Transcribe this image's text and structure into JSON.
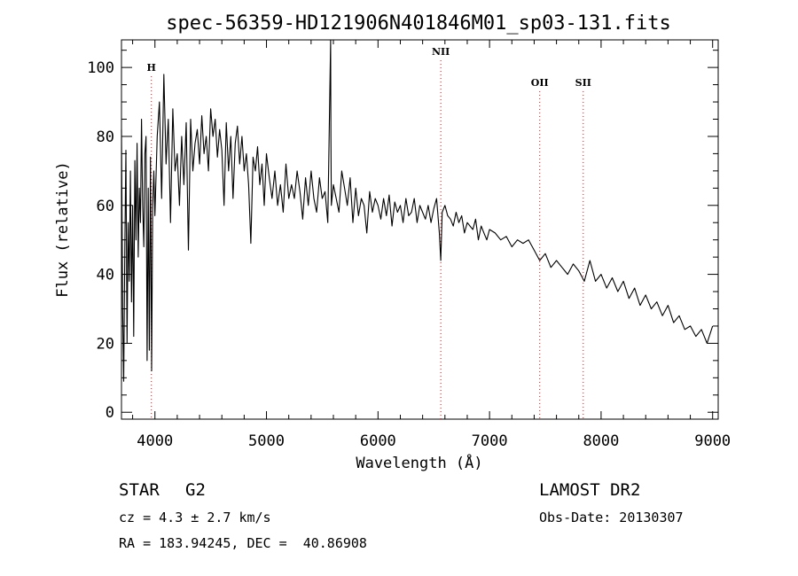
{
  "chart_data": {
    "type": "line",
    "title": "spec-56359-HD121906N401846M01_sp03-131.fits",
    "xlabel": "Wavelength (Å)",
    "ylabel": "Flux (relative)",
    "xlim": [
      3700,
      9050
    ],
    "ylim": [
      -2,
      108
    ],
    "xticks": [
      4000,
      5000,
      6000,
      7000,
      8000,
      9000
    ],
    "yticks": [
      0,
      20,
      40,
      60,
      80,
      100
    ],
    "grid": false,
    "series": [
      {
        "x": [
          3700,
          3710,
          3720,
          3730,
          3740,
          3750,
          3760,
          3770,
          3780,
          3790,
          3800,
          3810,
          3820,
          3830,
          3840,
          3850,
          3860,
          3870,
          3880,
          3890,
          3900,
          3910,
          3920,
          3930,
          3940,
          3950,
          3960,
          3970,
          3980,
          3990,
          4000,
          4020,
          4040,
          4060,
          4080,
          4100,
          4120,
          4140,
          4160,
          4180,
          4200,
          4220,
          4240,
          4260,
          4280,
          4300,
          4320,
          4340,
          4360,
          4380,
          4400,
          4420,
          4440,
          4460,
          4480,
          4500,
          4520,
          4540,
          4560,
          4580,
          4600,
          4620,
          4640,
          4660,
          4680,
          4700,
          4720,
          4740,
          4760,
          4780,
          4800,
          4820,
          4840,
          4860,
          4880,
          4900,
          4920,
          4940,
          4960,
          4980,
          5000,
          5025,
          5050,
          5075,
          5100,
          5125,
          5150,
          5175,
          5200,
          5225,
          5250,
          5275,
          5300,
          5325,
          5350,
          5375,
          5400,
          5425,
          5450,
          5475,
          5500,
          5525,
          5550,
          5575,
          5578,
          5582,
          5600,
          5625,
          5650,
          5675,
          5700,
          5725,
          5750,
          5775,
          5800,
          5825,
          5850,
          5875,
          5900,
          5925,
          5950,
          5975,
          6000,
          6025,
          6050,
          6075,
          6100,
          6125,
          6150,
          6175,
          6200,
          6225,
          6250,
          6275,
          6300,
          6325,
          6350,
          6375,
          6400,
          6425,
          6450,
          6475,
          6500,
          6525,
          6550,
          6563,
          6575,
          6600,
          6625,
          6650,
          6675,
          6700,
          6725,
          6750,
          6775,
          6800,
          6825,
          6850,
          6875,
          6900,
          6925,
          6950,
          6975,
          7000,
          7050,
          7100,
          7150,
          7200,
          7250,
          7300,
          7350,
          7400,
          7450,
          7500,
          7550,
          7600,
          7650,
          7700,
          7750,
          7800,
          7850,
          7900,
          7950,
          8000,
          8050,
          8100,
          8150,
          8200,
          8250,
          8300,
          8350,
          8400,
          8450,
          8500,
          8550,
          8600,
          8650,
          8700,
          8750,
          8800,
          8850,
          8900,
          8950,
          9000
        ],
        "y": [
          82,
          30,
          9,
          48,
          76,
          20,
          55,
          38,
          70,
          32,
          60,
          22,
          73,
          50,
          78,
          45,
          65,
          55,
          85,
          60,
          48,
          75,
          80,
          15,
          65,
          18,
          74,
          12,
          60,
          70,
          57,
          80,
          90,
          62,
          98,
          72,
          85,
          55,
          88,
          70,
          75,
          60,
          80,
          66,
          84,
          47,
          85,
          70,
          78,
          82,
          72,
          86,
          75,
          80,
          70,
          88,
          80,
          85,
          74,
          82,
          76,
          60,
          84,
          70,
          80,
          62,
          78,
          83,
          72,
          80,
          70,
          75,
          66,
          49,
          74,
          70,
          77,
          66,
          72,
          60,
          75,
          68,
          62,
          70,
          60,
          66,
          58,
          72,
          62,
          66,
          62,
          70,
          64,
          56,
          68,
          60,
          70,
          62,
          58,
          68,
          62,
          64,
          55,
          108,
          80,
          60,
          66,
          62,
          58,
          70,
          65,
          60,
          68,
          55,
          65,
          57,
          62,
          60,
          52,
          64,
          58,
          62,
          60,
          56,
          62,
          57,
          63,
          54,
          61,
          58,
          60,
          55,
          62,
          57,
          58,
          62,
          55,
          60,
          58,
          56,
          60,
          55,
          59,
          62,
          52,
          44,
          58,
          60,
          57,
          56,
          54,
          58,
          55,
          57,
          52,
          55,
          54,
          53,
          56,
          50,
          54,
          52,
          50,
          53,
          52,
          50,
          51,
          48,
          50,
          49,
          50,
          47,
          44,
          46,
          42,
          44,
          42,
          40,
          43,
          41,
          38,
          44,
          38,
          40,
          36,
          39,
          35,
          38,
          33,
          36,
          31,
          34,
          30,
          32,
          28,
          31,
          26,
          28,
          24,
          25,
          22,
          24,
          20,
          25
        ],
        "color": "#000000"
      }
    ],
    "lines": [
      {
        "label": "H",
        "x": 3968,
        "color": "#ff0000"
      },
      {
        "label": "NII",
        "x": 6563,
        "color": "#ff0000"
      },
      {
        "label": "OII",
        "x": 7450,
        "color": "#ff0000"
      },
      {
        "label": "SII",
        "x": 7840,
        "color": "#ff0000"
      }
    ]
  },
  "info": {
    "object_type": "STAR",
    "subclass": "G2",
    "survey": "LAMOST DR2",
    "cz": "cz = 4.3 ± 2.7 km/s",
    "obs_date": "Obs-Date: 20130307",
    "coords": "RA = 183.94245, DEC =  40.86908"
  }
}
